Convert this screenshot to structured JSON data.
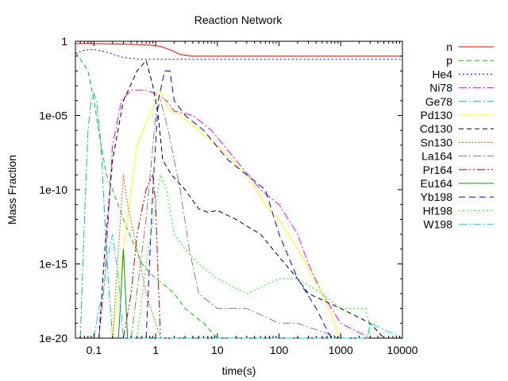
{
  "chart_data": {
    "type": "line",
    "title": "Reaction Network",
    "xlabel": "time(s)",
    "ylabel": "Mass Fraction",
    "xscale": "log",
    "yscale": "log",
    "xlim": [
      0.05,
      10000
    ],
    "ylim": [
      1e-20,
      1
    ],
    "grid": false,
    "legend_position": "right",
    "x_ticks": [
      {
        "value": 0.1,
        "label": "0.1"
      },
      {
        "value": 1,
        "label": "1"
      },
      {
        "value": 10,
        "label": "10"
      },
      {
        "value": 100,
        "label": "100"
      },
      {
        "value": 1000,
        "label": "1000"
      },
      {
        "value": 10000,
        "label": "10000"
      }
    ],
    "y_ticks": [
      {
        "value": 1,
        "label": "1"
      },
      {
        "value": 1e-05,
        "label": "1e-05"
      },
      {
        "value": 1e-10,
        "label": "1e-10"
      },
      {
        "value": 1e-15,
        "label": "1e-15"
      },
      {
        "value": 1e-20,
        "label": "1e-20"
      }
    ],
    "series": [
      {
        "name": "n",
        "color": "#ff0000",
        "dash": "solid",
        "points": [
          [
            0.05,
            0.7
          ],
          [
            0.1,
            0.69
          ],
          [
            0.3,
            0.64
          ],
          [
            0.8,
            0.55
          ],
          [
            1.2,
            0.45
          ],
          [
            1.8,
            0.25
          ],
          [
            2.5,
            0.13
          ],
          [
            4,
            0.1
          ],
          [
            10,
            0.1
          ],
          [
            100,
            0.1
          ],
          [
            1000,
            0.1
          ],
          [
            10000,
            0.1
          ]
        ]
      },
      {
        "name": "p",
        "color": "#00c000",
        "dash": "6,4",
        "points": [
          [
            0.05,
            0.2
          ],
          [
            0.08,
            0.01
          ],
          [
            0.1,
            0.0001
          ],
          [
            0.13,
            1e-07
          ],
          [
            0.16,
            1e-09
          ],
          [
            0.2,
            1e-10
          ],
          [
            0.3,
            1e-12
          ],
          [
            0.6,
            1e-15
          ],
          [
            1,
            1e-16
          ],
          [
            1.5,
            3e-17
          ],
          [
            2,
            1e-17
          ],
          [
            3,
            1e-18
          ],
          [
            6,
            1e-19
          ],
          [
            10,
            1e-20
          ]
        ]
      },
      {
        "name": "He4",
        "color": "#0000ff",
        "dash": "2,3",
        "points": [
          [
            0.05,
            0.15
          ],
          [
            0.07,
            0.25
          ],
          [
            0.1,
            0.28
          ],
          [
            0.15,
            0.2
          ],
          [
            0.3,
            0.08
          ],
          [
            0.6,
            0.06
          ],
          [
            10,
            0.06
          ],
          [
            10000,
            0.06
          ]
        ]
      },
      {
        "name": "Ni78",
        "color": "#ff00ff",
        "dash": "10,3,2,3",
        "points": [
          [
            0.12,
            1e-20
          ],
          [
            0.15,
            1e-16
          ],
          [
            0.2,
            1e-07
          ],
          [
            0.28,
            0.0001
          ],
          [
            0.4,
            0.0005
          ],
          [
            0.7,
            0.0005
          ],
          [
            1,
            0.0003
          ],
          [
            1.5,
            0.0001
          ],
          [
            2,
            2e-05
          ],
          [
            4,
            1e-05
          ],
          [
            8,
            1e-06
          ],
          [
            20,
            1e-08
          ],
          [
            50,
            1e-10
          ],
          [
            100,
            1e-11
          ],
          [
            200,
            1e-13
          ],
          [
            300,
            1e-15
          ],
          [
            500,
            1e-17
          ],
          [
            1000,
            1e-19
          ],
          [
            3000,
            1e-20
          ]
        ]
      },
      {
        "name": "Ge78",
        "color": "#00c0c0",
        "dash": "10,3,2,3",
        "points": [
          [
            0.06,
            1e-20
          ],
          [
            0.07,
            1e-12
          ],
          [
            0.08,
            1e-06
          ],
          [
            0.09,
            0.0001
          ],
          [
            0.1,
            0.0003
          ],
          [
            0.11,
            0.0001
          ],
          [
            0.13,
            1e-07
          ],
          [
            0.15,
            1e-12
          ],
          [
            0.17,
            1e-16
          ],
          [
            0.2,
            1e-20
          ]
        ]
      },
      {
        "name": "Pd130",
        "color": "#ffff00",
        "dash": "solid",
        "points": [
          [
            0.2,
            1e-20
          ],
          [
            0.3,
            1e-14
          ],
          [
            0.5,
            1e-07
          ],
          [
            0.8,
            1e-05
          ],
          [
            1.2,
            0.0004
          ],
          [
            1.6,
            3e-05
          ],
          [
            2.5,
            1e-05
          ],
          [
            5,
            1e-06
          ],
          [
            10,
            1e-07
          ],
          [
            30,
            1e-09
          ],
          [
            60,
            1e-11
          ],
          [
            100,
            1e-12
          ],
          [
            200,
            1e-14
          ],
          [
            500,
            1e-17
          ],
          [
            800,
            1e-19
          ],
          [
            1000,
            1e-20
          ]
        ]
      },
      {
        "name": "Cd130",
        "color": "#000000",
        "dash": "6,4",
        "points": [
          [
            0.12,
            1e-20
          ],
          [
            0.15,
            1e-14
          ],
          [
            0.2,
            1e-08
          ],
          [
            0.3,
            0.0001
          ],
          [
            0.5,
            0.01
          ],
          [
            0.7,
            0.05
          ],
          [
            0.9,
            0.001
          ],
          [
            1.1,
            1e-05
          ],
          [
            1.3,
            1e-08
          ],
          [
            1.8,
            1e-09
          ],
          [
            3,
            1e-10
          ],
          [
            5,
            5e-12
          ],
          [
            7,
            3e-12
          ],
          [
            10,
            4e-12
          ],
          [
            20,
            1e-12
          ],
          [
            50,
            1e-13
          ],
          [
            100,
            3e-15
          ],
          [
            200,
            1e-16
          ],
          [
            300,
            1e-17
          ],
          [
            1000,
            1e-18
          ],
          [
            3000,
            1e-19
          ],
          [
            5000,
            1e-20
          ]
        ]
      },
      {
        "name": "Sn130",
        "color": "#e06000",
        "dash": "2,2",
        "points": [
          [
            0.2,
            1e-20
          ],
          [
            0.25,
            1e-14
          ],
          [
            0.3,
            1e-09
          ],
          [
            0.35,
            1e-11
          ],
          [
            0.5,
            1e-14
          ],
          [
            0.7,
            1e-17
          ],
          [
            1,
            1e-19
          ],
          [
            1.2,
            1e-20
          ]
        ]
      },
      {
        "name": "La164",
        "color": "#808080",
        "dash": "10,3,2,3",
        "points": [
          [
            0.4,
            1e-20
          ],
          [
            0.7,
            1e-12
          ],
          [
            1,
            1e-05
          ],
          [
            1.2,
            0.0001
          ],
          [
            1.6,
            1e-06
          ],
          [
            2.5,
            1e-10
          ],
          [
            3.5,
            1e-14
          ],
          [
            5,
            1e-17
          ],
          [
            10,
            1e-18
          ],
          [
            30,
            1e-18
          ],
          [
            100,
            1e-19
          ],
          [
            200,
            1e-19
          ],
          [
            1000,
            1e-20
          ]
        ]
      },
      {
        "name": "Pr164",
        "color": "#c00000",
        "dash": "10,3,2,3,2,3",
        "points": [
          [
            0.3,
            1e-20
          ],
          [
            0.4,
            1e-17
          ],
          [
            0.5,
            1e-13
          ],
          [
            0.7,
            1e-10
          ],
          [
            0.9,
            1e-09
          ],
          [
            1,
            1e-11
          ],
          [
            1.1,
            1e-16
          ],
          [
            1.2,
            1e-20
          ]
        ]
      },
      {
        "name": "Eu164",
        "color": "#00a000",
        "dash": "solid",
        "points": [
          [
            0.25,
            1e-20
          ],
          [
            0.3,
            1e-14
          ],
          [
            0.35,
            1e-20
          ]
        ]
      },
      {
        "name": "Yb198",
        "color": "#0000ff",
        "dash": "8,5",
        "points": [
          [
            0.7,
            1e-20
          ],
          [
            0.9,
            1e-10
          ],
          [
            1.1,
            0.0001
          ],
          [
            1.4,
            0.01
          ],
          [
            1.7,
            0.01
          ],
          [
            2,
            0.0001
          ],
          [
            3,
            1e-05
          ],
          [
            6,
            1e-06
          ],
          [
            15,
            1e-08
          ],
          [
            30,
            1e-09
          ],
          [
            60,
            1e-10
          ],
          [
            100,
            1e-13
          ],
          [
            200,
            1e-16
          ],
          [
            400,
            1e-18
          ],
          [
            700,
            1e-20
          ]
        ]
      },
      {
        "name": "Hf198",
        "color": "#00ff00",
        "dash": "2,3",
        "points": [
          [
            0.5,
            1e-20
          ],
          [
            0.7,
            1e-15
          ],
          [
            1.2,
            1e-09
          ],
          [
            1.5,
            1e-10
          ],
          [
            2,
            1e-13
          ],
          [
            3,
            1e-14
          ],
          [
            5,
            1e-15
          ],
          [
            10,
            1e-16
          ],
          [
            30,
            1e-17
          ],
          [
            100,
            1e-16
          ],
          [
            200,
            1e-16
          ],
          [
            500,
            1e-17
          ],
          [
            1000,
            1e-18
          ],
          [
            2500,
            1e-18
          ],
          [
            2900,
            1e-19
          ],
          [
            3000,
            1e-20
          ]
        ]
      },
      {
        "name": "W198",
        "color": "#00e0e0",
        "dash": "10,3,2,3",
        "points": [
          [
            0.1,
            1e-20
          ],
          [
            0.12,
            1e-18
          ],
          [
            0.14,
            1e-17
          ],
          [
            0.16,
            1e-15
          ],
          [
            0.2,
            1e-13
          ],
          [
            0.25,
            1e-16
          ],
          [
            0.3,
            1e-20
          ],
          [
            2700,
            1e-20
          ],
          [
            3000,
            1e-19
          ],
          [
            10000,
            1e-20
          ]
        ]
      }
    ]
  }
}
